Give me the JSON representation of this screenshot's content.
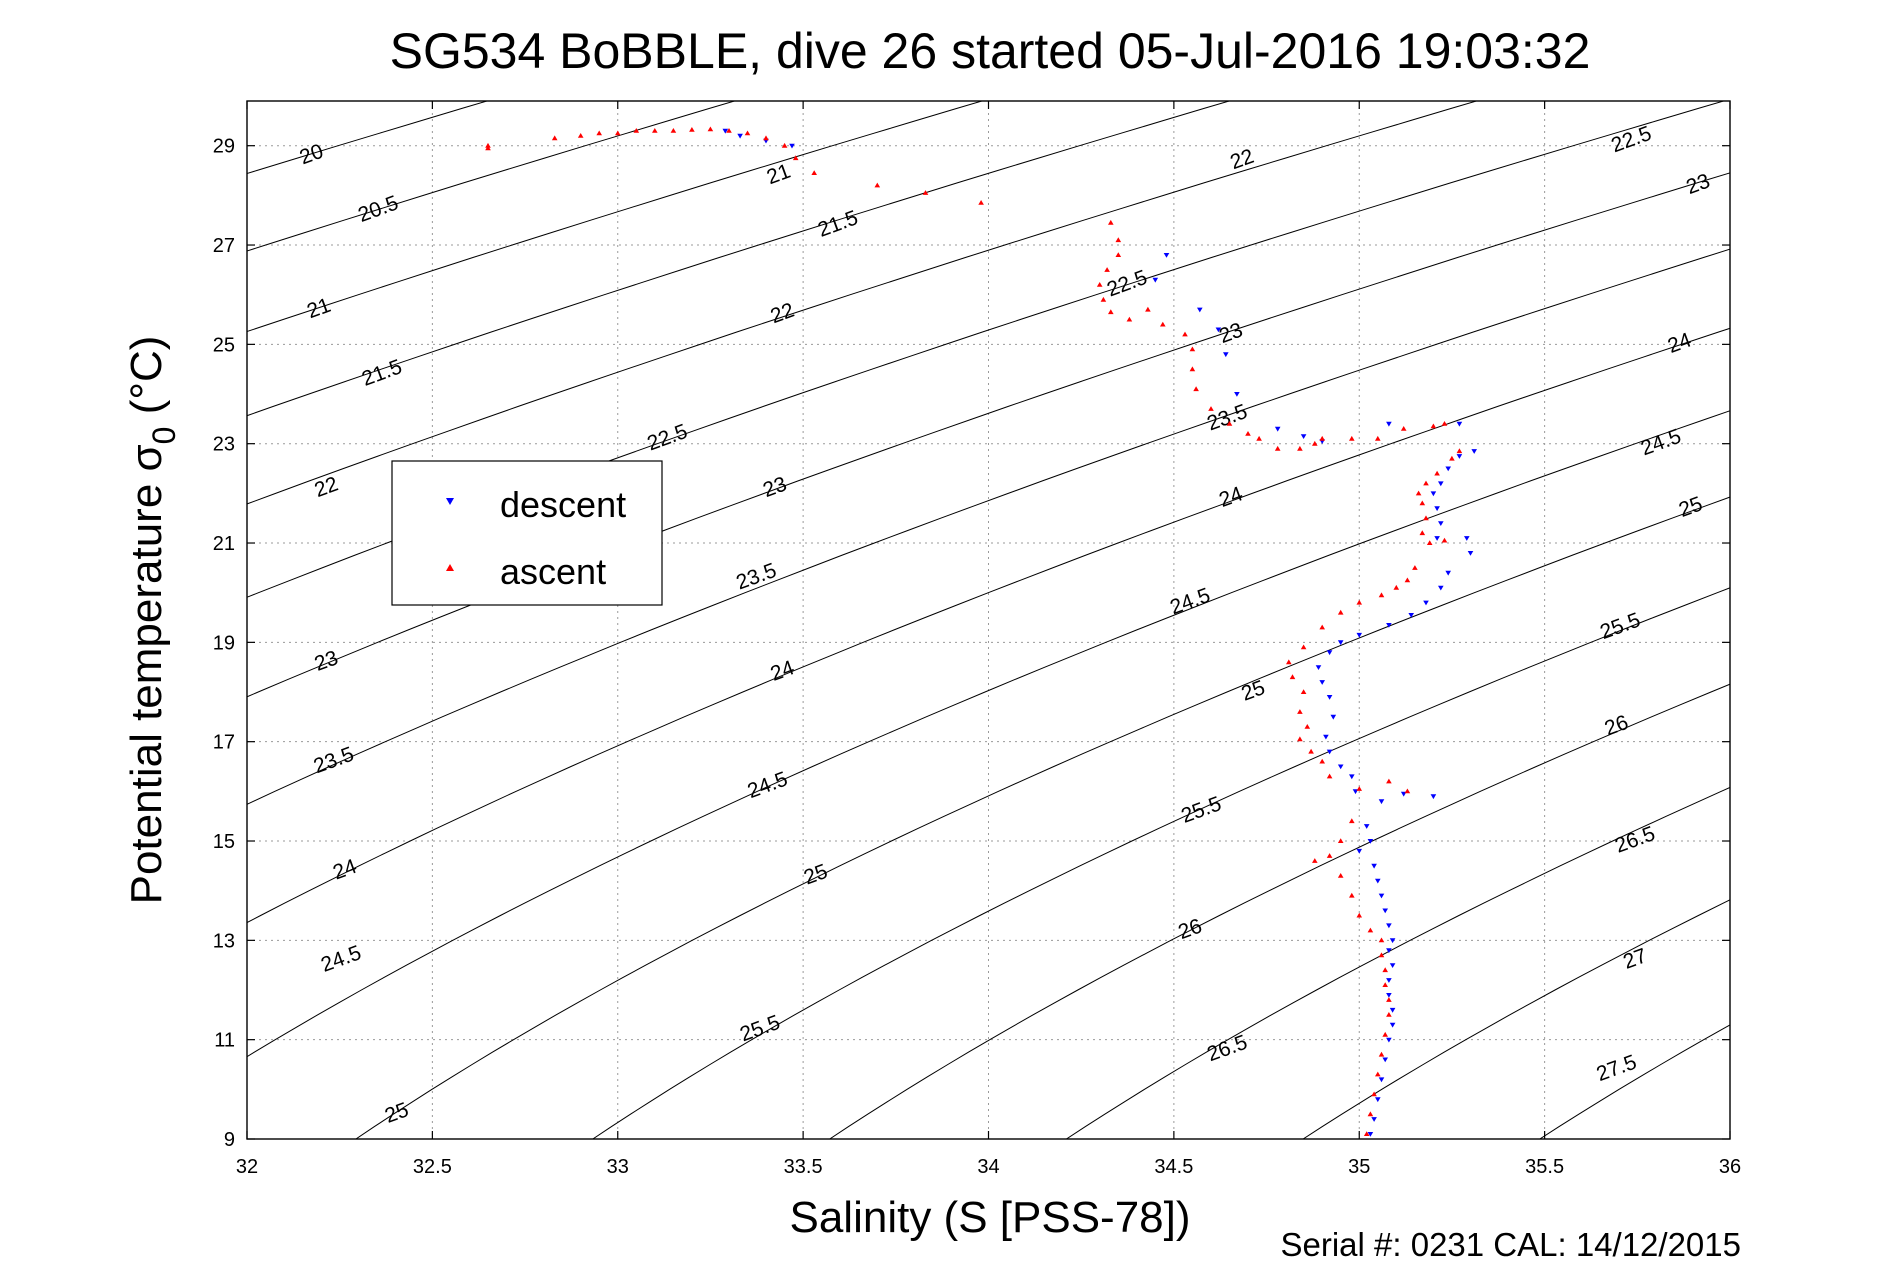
{
  "chart_data": {
    "type": "scatter",
    "title": "SG534 BoBBLE, dive 26 started 05-Jul-2016 19:03:32",
    "xlabel": "Salinity (S [PSS-78])",
    "ylabel": "Potential temperature σ",
    "ylabel_subscript": "0",
    "ylabel_unit": "(°C)",
    "xlim": [
      32,
      36
    ],
    "ylim": [
      9,
      29.9
    ],
    "x_ticks": [
      32,
      32.5,
      33,
      33.5,
      34,
      34.5,
      35,
      35.5,
      36
    ],
    "x_tick_labels": [
      "32",
      "32.5",
      "33",
      "33.5",
      "34",
      "34.5",
      "35",
      "35.5",
      "36"
    ],
    "y_ticks": [
      9,
      11,
      13,
      15,
      17,
      19,
      21,
      23,
      25,
      27,
      29
    ],
    "y_tick_labels": [
      "9",
      "11",
      "13",
      "15",
      "17",
      "19",
      "21",
      "23",
      "25",
      "27",
      "29"
    ],
    "grid": true,
    "legend": {
      "placement": "left-middle",
      "entries": [
        "descent",
        "ascent"
      ]
    },
    "footer": "Serial #: 0231  CAL: 14/12/2015",
    "colors": {
      "descent": "#0000ff",
      "ascent": "#ff0000",
      "contour": "#000000",
      "grid": "#9a9a9a"
    },
    "density_contours": {
      "levels": [
        20,
        20.5,
        21,
        21.5,
        22,
        22.5,
        23,
        23.5,
        24,
        24.5,
        25,
        25.5,
        26,
        26.5,
        27,
        27.5
      ],
      "labels": [
        {
          "text": "20",
          "s": 32.18,
          "t": 28.7
        },
        {
          "text": "20.5",
          "s": 32.36,
          "t": 27.6
        },
        {
          "text": "21",
          "s": 32.2,
          "t": 25.6
        },
        {
          "text": "21.5",
          "s": 32.37,
          "t": 24.3
        },
        {
          "text": "22",
          "s": 32.22,
          "t": 22.0
        },
        {
          "text": "22.5",
          "s": 33.14,
          "t": 23.0
        },
        {
          "text": "23",
          "s": 32.22,
          "t": 18.5
        },
        {
          "text": "23.5",
          "s": 32.24,
          "t": 16.5
        },
        {
          "text": "24",
          "s": 32.27,
          "t": 14.3
        },
        {
          "text": "24.5",
          "s": 32.26,
          "t": 12.5
        },
        {
          "text": "25",
          "s": 32.41,
          "t": 9.4
        },
        {
          "text": "21",
          "s": 33.44,
          "t": 28.3
        },
        {
          "text": "21.5",
          "s": 33.6,
          "t": 27.3
        },
        {
          "text": "22",
          "s": 33.45,
          "t": 25.5
        },
        {
          "text": "23",
          "s": 33.43,
          "t": 22.0
        },
        {
          "text": "23.5",
          "s": 33.38,
          "t": 20.2
        },
        {
          "text": "24",
          "s": 33.45,
          "t": 18.3
        },
        {
          "text": "24.5",
          "s": 33.41,
          "t": 16.0
        },
        {
          "text": "25",
          "s": 33.54,
          "t": 14.2
        },
        {
          "text": "25.5",
          "s": 33.39,
          "t": 11.1
        },
        {
          "text": "22",
          "s": 34.69,
          "t": 28.6
        },
        {
          "text": "22.5",
          "s": 34.38,
          "t": 26.1
        },
        {
          "text": "23",
          "s": 34.66,
          "t": 25.1
        },
        {
          "text": "23.5",
          "s": 34.65,
          "t": 23.4
        },
        {
          "text": "24",
          "s": 34.66,
          "t": 21.8
        },
        {
          "text": "24.5",
          "s": 34.55,
          "t": 19.7
        },
        {
          "text": "25",
          "s": 34.72,
          "t": 17.9
        },
        {
          "text": "25.5",
          "s": 34.58,
          "t": 15.5
        },
        {
          "text": "26",
          "s": 34.55,
          "t": 13.1
        },
        {
          "text": "26.5",
          "s": 34.65,
          "t": 10.7
        },
        {
          "text": "22.5",
          "s": 35.74,
          "t": 29.0
        },
        {
          "text": "23",
          "s": 35.92,
          "t": 28.1
        },
        {
          "text": "24",
          "s": 35.87,
          "t": 24.9
        },
        {
          "text": "24.5",
          "s": 35.82,
          "t": 22.9
        },
        {
          "text": "25",
          "s": 35.9,
          "t": 21.6
        },
        {
          "text": "25.5",
          "s": 35.71,
          "t": 19.2
        },
        {
          "text": "26",
          "s": 35.7,
          "t": 17.2
        },
        {
          "text": "26.5",
          "s": 35.75,
          "t": 14.9
        },
        {
          "text": "27",
          "s": 35.75,
          "t": 12.5
        },
        {
          "text": "27.5",
          "s": 35.7,
          "t": 10.3
        }
      ]
    },
    "series": [
      {
        "name": "descent",
        "marker": "triangle-down",
        "points": [
          [
            33.29,
            29.3
          ],
          [
            33.33,
            29.2
          ],
          [
            33.4,
            29.1
          ],
          [
            33.47,
            29.0
          ],
          [
            34.48,
            26.8
          ],
          [
            34.45,
            26.3
          ],
          [
            34.57,
            25.7
          ],
          [
            34.62,
            25.3
          ],
          [
            34.64,
            24.8
          ],
          [
            34.67,
            24.0
          ],
          [
            34.78,
            23.3
          ],
          [
            34.85,
            23.15
          ],
          [
            34.9,
            23.05
          ],
          [
            35.08,
            23.4
          ],
          [
            35.27,
            23.4
          ],
          [
            35.31,
            22.85
          ],
          [
            35.27,
            22.75
          ],
          [
            35.24,
            22.5
          ],
          [
            35.22,
            22.2
          ],
          [
            35.2,
            22.0
          ],
          [
            35.21,
            21.7
          ],
          [
            35.22,
            21.4
          ],
          [
            35.21,
            21.1
          ],
          [
            35.29,
            21.1
          ],
          [
            35.3,
            20.8
          ],
          [
            35.24,
            20.4
          ],
          [
            35.22,
            20.1
          ],
          [
            35.18,
            19.8
          ],
          [
            35.14,
            19.55
          ],
          [
            35.08,
            19.35
          ],
          [
            35.0,
            19.15
          ],
          [
            34.95,
            19.0
          ],
          [
            34.92,
            18.8
          ],
          [
            34.89,
            18.5
          ],
          [
            34.9,
            18.2
          ],
          [
            34.92,
            17.9
          ],
          [
            34.93,
            17.5
          ],
          [
            34.91,
            17.1
          ],
          [
            34.92,
            16.8
          ],
          [
            34.95,
            16.5
          ],
          [
            34.98,
            16.3
          ],
          [
            34.99,
            16.0
          ],
          [
            35.06,
            15.8
          ],
          [
            35.12,
            15.95
          ],
          [
            35.2,
            15.9
          ],
          [
            35.02,
            15.3
          ],
          [
            35.03,
            15.0
          ],
          [
            35.0,
            14.8
          ],
          [
            35.04,
            14.5
          ],
          [
            35.05,
            14.2
          ],
          [
            35.06,
            13.9
          ],
          [
            35.07,
            13.6
          ],
          [
            35.08,
            13.3
          ],
          [
            35.09,
            13.0
          ],
          [
            35.08,
            12.8
          ],
          [
            35.09,
            12.5
          ],
          [
            35.08,
            12.2
          ],
          [
            35.08,
            11.9
          ],
          [
            35.09,
            11.6
          ],
          [
            35.09,
            11.3
          ],
          [
            35.08,
            11.0
          ],
          [
            35.07,
            10.6
          ],
          [
            35.06,
            10.2
          ],
          [
            35.05,
            9.8
          ],
          [
            35.04,
            9.4
          ],
          [
            35.03,
            9.1
          ]
        ]
      },
      {
        "name": "ascent",
        "marker": "triangle-up",
        "points": [
          [
            32.65,
            29.0
          ],
          [
            32.65,
            28.95
          ],
          [
            32.83,
            29.15
          ],
          [
            32.9,
            29.2
          ],
          [
            32.95,
            29.25
          ],
          [
            33.0,
            29.25
          ],
          [
            33.05,
            29.3
          ],
          [
            33.1,
            29.3
          ],
          [
            33.15,
            29.3
          ],
          [
            33.2,
            29.32
          ],
          [
            33.25,
            29.33
          ],
          [
            33.3,
            29.3
          ],
          [
            33.35,
            29.25
          ],
          [
            33.4,
            29.15
          ],
          [
            33.45,
            29.0
          ],
          [
            33.48,
            28.75
          ],
          [
            33.53,
            28.45
          ],
          [
            33.7,
            28.2
          ],
          [
            33.83,
            28.05
          ],
          [
            33.98,
            27.85
          ],
          [
            34.33,
            27.45
          ],
          [
            34.35,
            27.1
          ],
          [
            34.35,
            26.8
          ],
          [
            34.32,
            26.5
          ],
          [
            34.3,
            26.2
          ],
          [
            34.31,
            25.9
          ],
          [
            34.33,
            25.65
          ],
          [
            34.38,
            25.5
          ],
          [
            34.43,
            25.7
          ],
          [
            34.47,
            25.4
          ],
          [
            34.53,
            25.2
          ],
          [
            34.55,
            24.9
          ],
          [
            34.55,
            24.5
          ],
          [
            34.56,
            24.1
          ],
          [
            34.6,
            23.7
          ],
          [
            34.65,
            23.4
          ],
          [
            34.7,
            23.2
          ],
          [
            34.73,
            23.1
          ],
          [
            34.78,
            22.9
          ],
          [
            34.84,
            22.9
          ],
          [
            34.88,
            23.0
          ],
          [
            34.9,
            23.1
          ],
          [
            34.98,
            23.1
          ],
          [
            35.05,
            23.1
          ],
          [
            35.12,
            23.3
          ],
          [
            35.2,
            23.35
          ],
          [
            35.23,
            23.4
          ],
          [
            35.27,
            22.85
          ],
          [
            35.25,
            22.7
          ],
          [
            35.21,
            22.4
          ],
          [
            35.18,
            22.2
          ],
          [
            35.16,
            22.0
          ],
          [
            35.17,
            21.8
          ],
          [
            35.18,
            21.5
          ],
          [
            35.17,
            21.2
          ],
          [
            35.19,
            21.0
          ],
          [
            35.23,
            21.05
          ],
          [
            35.15,
            20.5
          ],
          [
            35.13,
            20.25
          ],
          [
            35.1,
            20.1
          ],
          [
            35.06,
            19.95
          ],
          [
            35.0,
            19.8
          ],
          [
            34.95,
            19.6
          ],
          [
            34.9,
            19.3
          ],
          [
            34.85,
            18.9
          ],
          [
            34.81,
            18.6
          ],
          [
            34.82,
            18.3
          ],
          [
            34.85,
            18.0
          ],
          [
            34.84,
            17.6
          ],
          [
            34.86,
            17.3
          ],
          [
            34.84,
            17.05
          ],
          [
            34.87,
            16.8
          ],
          [
            34.9,
            16.6
          ],
          [
            34.92,
            16.3
          ],
          [
            35.0,
            16.05
          ],
          [
            35.08,
            16.2
          ],
          [
            35.13,
            16.0
          ],
          [
            34.98,
            15.4
          ],
          [
            34.95,
            15.0
          ],
          [
            34.92,
            14.7
          ],
          [
            34.88,
            14.6
          ],
          [
            34.95,
            14.3
          ],
          [
            34.98,
            13.9
          ],
          [
            35.0,
            13.5
          ],
          [
            35.03,
            13.2
          ],
          [
            35.06,
            13.0
          ],
          [
            35.06,
            12.7
          ],
          [
            35.07,
            12.4
          ],
          [
            35.07,
            12.1
          ],
          [
            35.08,
            11.8
          ],
          [
            35.08,
            11.5
          ],
          [
            35.07,
            11.1
          ],
          [
            35.06,
            10.7
          ],
          [
            35.05,
            10.3
          ],
          [
            35.04,
            9.9
          ],
          [
            35.03,
            9.5
          ],
          [
            35.02,
            9.1
          ]
        ]
      }
    ]
  }
}
